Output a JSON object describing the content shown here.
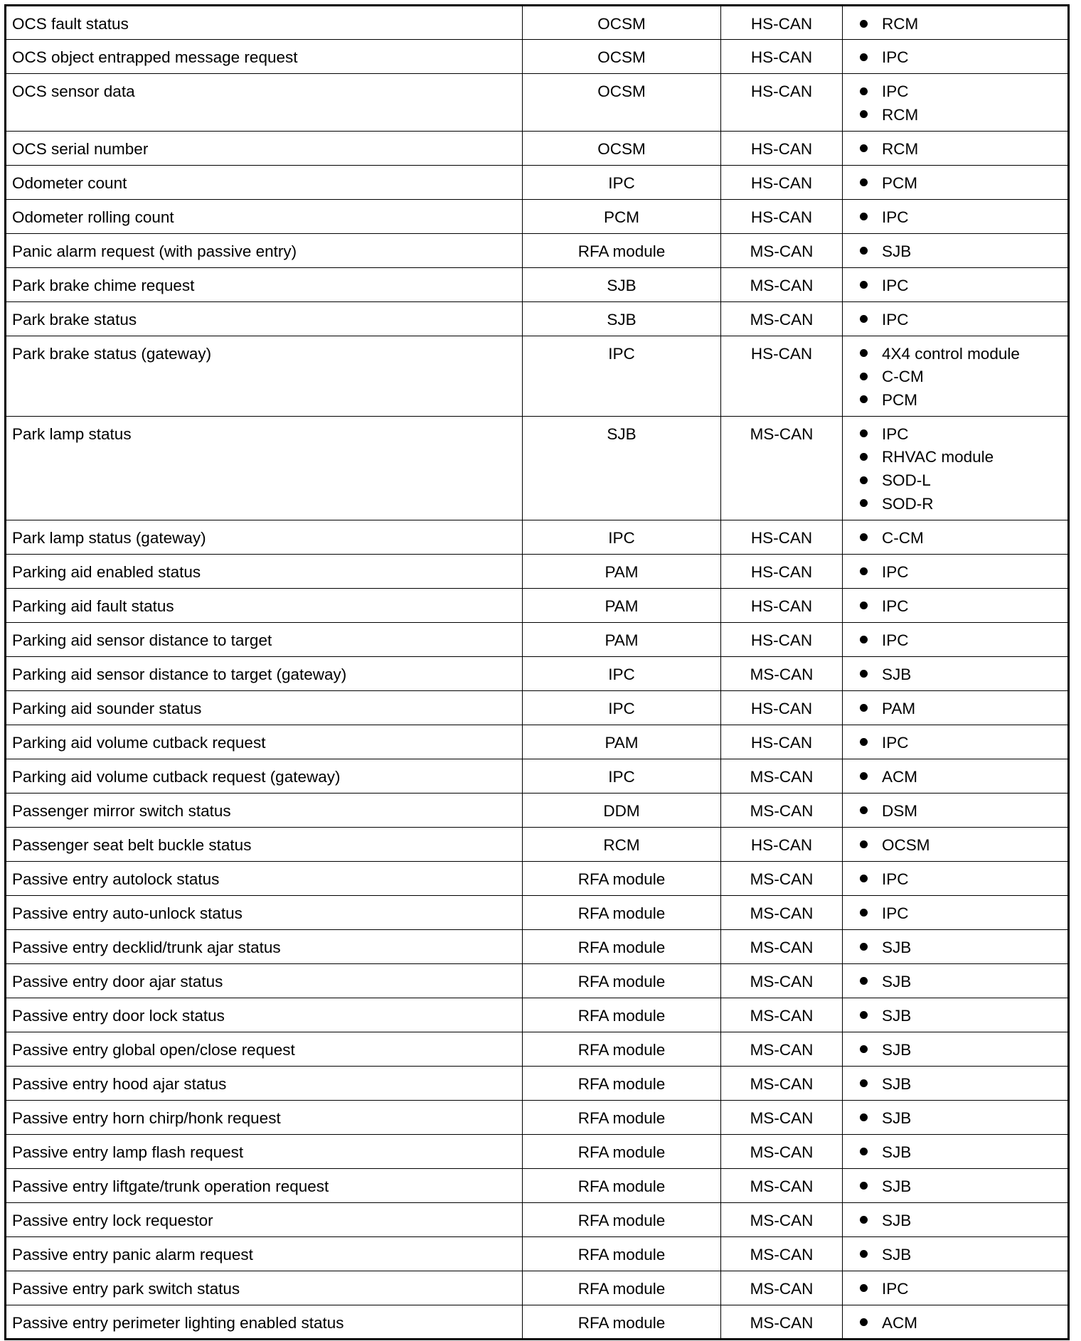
{
  "rows": [
    {
      "message": "OCS fault status",
      "originator": "OCSM",
      "network": "HS-CAN",
      "receivers": [
        "RCM"
      ]
    },
    {
      "message": "OCS object entrapped message request",
      "originator": "OCSM",
      "network": "HS-CAN",
      "receivers": [
        "IPC"
      ]
    },
    {
      "message": "OCS sensor data",
      "originator": "OCSM",
      "network": "HS-CAN",
      "receivers": [
        "IPC",
        "RCM"
      ]
    },
    {
      "message": "OCS serial number",
      "originator": "OCSM",
      "network": "HS-CAN",
      "receivers": [
        "RCM"
      ]
    },
    {
      "message": "Odometer count",
      "originator": "IPC",
      "network": "HS-CAN",
      "receivers": [
        "PCM"
      ]
    },
    {
      "message": "Odometer rolling count",
      "originator": "PCM",
      "network": "HS-CAN",
      "receivers": [
        "IPC"
      ]
    },
    {
      "message": "Panic alarm request (with passive entry)",
      "originator": "RFA module",
      "network": "MS-CAN",
      "receivers": [
        "SJB"
      ]
    },
    {
      "message": "Park brake chime request",
      "originator": "SJB",
      "network": "MS-CAN",
      "receivers": [
        "IPC"
      ]
    },
    {
      "message": "Park brake status",
      "originator": "SJB",
      "network": "MS-CAN",
      "receivers": [
        "IPC"
      ]
    },
    {
      "message": "Park brake status (gateway)",
      "originator": "IPC",
      "network": "HS-CAN",
      "receivers": [
        "4X4 control module",
        "C-CM",
        "PCM"
      ]
    },
    {
      "message": "Park lamp status",
      "originator": "SJB",
      "network": "MS-CAN",
      "receivers": [
        "IPC",
        "RHVAC module",
        "SOD-L",
        "SOD-R"
      ]
    },
    {
      "message": "Park lamp status (gateway)",
      "originator": "IPC",
      "network": "HS-CAN",
      "receivers": [
        "C-CM"
      ]
    },
    {
      "message": "Parking aid enabled status",
      "originator": "PAM",
      "network": "HS-CAN",
      "receivers": [
        "IPC"
      ]
    },
    {
      "message": "Parking aid fault status",
      "originator": "PAM",
      "network": "HS-CAN",
      "receivers": [
        "IPC"
      ]
    },
    {
      "message": "Parking aid sensor distance to target",
      "originator": "PAM",
      "network": "HS-CAN",
      "receivers": [
        "IPC"
      ]
    },
    {
      "message": "Parking aid sensor distance to target (gateway)",
      "originator": "IPC",
      "network": "MS-CAN",
      "receivers": [
        "SJB"
      ]
    },
    {
      "message": "Parking aid sounder status",
      "originator": "IPC",
      "network": "HS-CAN",
      "receivers": [
        "PAM"
      ]
    },
    {
      "message": "Parking aid volume cutback request",
      "originator": "PAM",
      "network": "HS-CAN",
      "receivers": [
        "IPC"
      ]
    },
    {
      "message": "Parking aid volume cutback request (gateway)",
      "originator": "IPC",
      "network": "MS-CAN",
      "receivers": [
        "ACM"
      ]
    },
    {
      "message": "Passenger mirror switch status",
      "originator": "DDM",
      "network": "MS-CAN",
      "receivers": [
        "DSM"
      ]
    },
    {
      "message": "Passenger seat belt buckle status",
      "originator": "RCM",
      "network": "HS-CAN",
      "receivers": [
        "OCSM"
      ]
    },
    {
      "message": "Passive entry autolock status",
      "originator": "RFA module",
      "network": "MS-CAN",
      "receivers": [
        "IPC"
      ]
    },
    {
      "message": "Passive entry auto-unlock status",
      "originator": "RFA module",
      "network": "MS-CAN",
      "receivers": [
        "IPC"
      ]
    },
    {
      "message": "Passive entry decklid/trunk ajar status",
      "originator": "RFA module",
      "network": "MS-CAN",
      "receivers": [
        "SJB"
      ]
    },
    {
      "message": "Passive entry door ajar status",
      "originator": "RFA module",
      "network": "MS-CAN",
      "receivers": [
        "SJB"
      ]
    },
    {
      "message": "Passive entry door lock status",
      "originator": "RFA module",
      "network": "MS-CAN",
      "receivers": [
        "SJB"
      ]
    },
    {
      "message": "Passive entry global open/close request",
      "originator": "RFA module",
      "network": "MS-CAN",
      "receivers": [
        "SJB"
      ]
    },
    {
      "message": "Passive entry hood ajar status",
      "originator": "RFA module",
      "network": "MS-CAN",
      "receivers": [
        "SJB"
      ]
    },
    {
      "message": "Passive entry horn chirp/honk request",
      "originator": "RFA module",
      "network": "MS-CAN",
      "receivers": [
        "SJB"
      ]
    },
    {
      "message": "Passive entry lamp flash request",
      "originator": "RFA module",
      "network": "MS-CAN",
      "receivers": [
        "SJB"
      ]
    },
    {
      "message": "Passive entry liftgate/trunk operation request",
      "originator": "RFA module",
      "network": "MS-CAN",
      "receivers": [
        "SJB"
      ]
    },
    {
      "message": "Passive entry lock requestor",
      "originator": "RFA module",
      "network": "MS-CAN",
      "receivers": [
        "SJB"
      ]
    },
    {
      "message": "Passive entry panic alarm request",
      "originator": "RFA module",
      "network": "MS-CAN",
      "receivers": [
        "SJB"
      ]
    },
    {
      "message": "Passive entry park switch status",
      "originator": "RFA module",
      "network": "MS-CAN",
      "receivers": [
        "IPC"
      ]
    },
    {
      "message": "Passive entry perimeter lighting enabled status",
      "originator": "RFA module",
      "network": "MS-CAN",
      "receivers": [
        "ACM"
      ]
    }
  ]
}
